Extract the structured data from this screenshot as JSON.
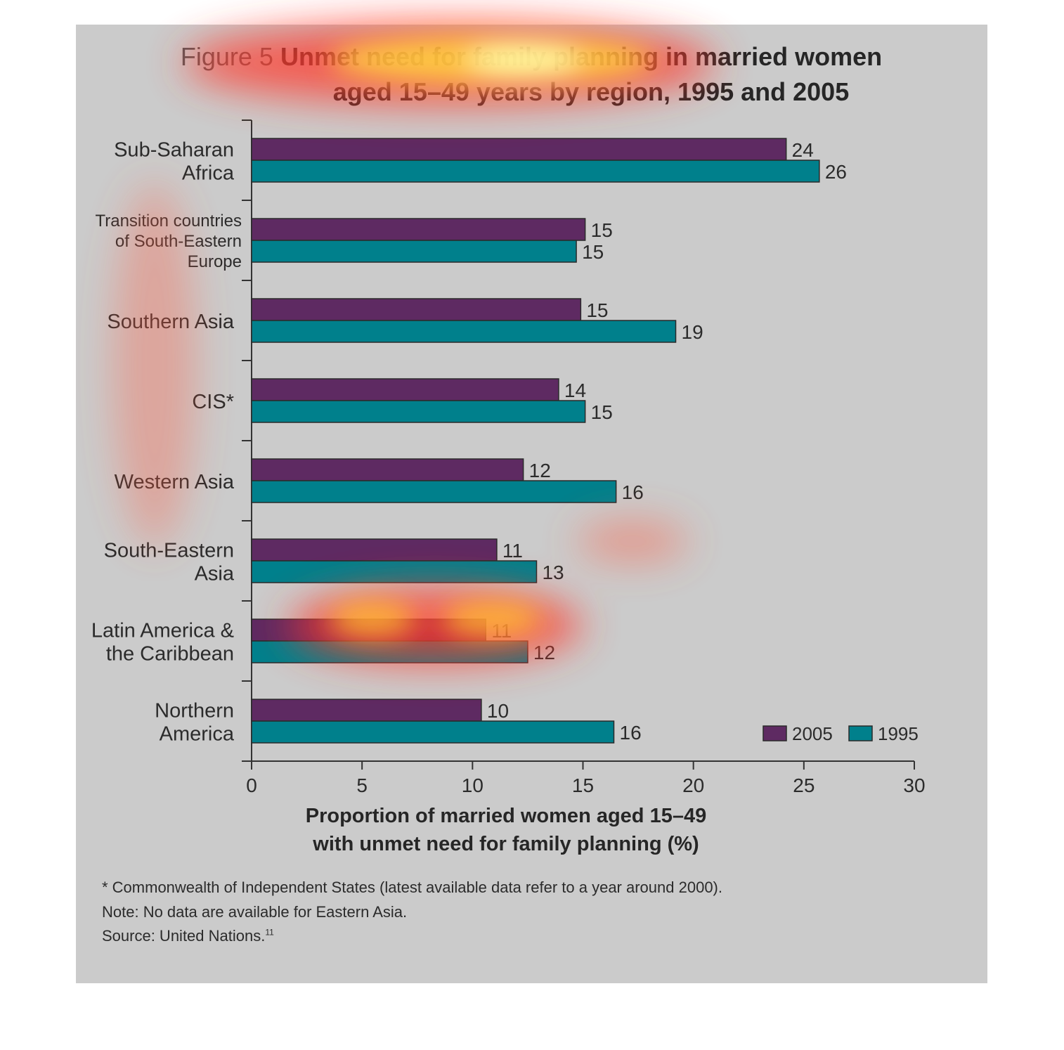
{
  "chart_data": {
    "type": "bar",
    "orientation": "horizontal",
    "title_prefix": "Figure 5",
    "title": "Unmet need for family planning in married women aged 15–49 years by region, 1995 and 2005",
    "title_lines": [
      "Unmet need for family planning in married women",
      "aged 15–49 years by region, 1995 and 2005"
    ],
    "categories": [
      [
        "Sub-Saharan",
        "Africa"
      ],
      [
        "Transition countries",
        "of South-Eastern",
        "Europe"
      ],
      [
        "Southern Asia"
      ],
      [
        "CIS*"
      ],
      [
        "Western Asia"
      ],
      [
        "South-Eastern",
        "Asia"
      ],
      [
        "Latin America &",
        "the Caribbean"
      ],
      [
        "Northern",
        "America"
      ]
    ],
    "series": [
      {
        "name": "2005",
        "color": "#5e2a62",
        "values": [
          24.2,
          15.1,
          14.9,
          13.9,
          12.3,
          11.1,
          10.6,
          10.4
        ],
        "labels": [
          "24",
          "15",
          "15",
          "14",
          "12",
          "11",
          "11",
          "10"
        ]
      },
      {
        "name": "1995",
        "color": "#00808c",
        "values": [
          25.7,
          14.7,
          19.2,
          15.1,
          16.5,
          12.9,
          12.5,
          16.4
        ],
        "labels": [
          "26",
          "15",
          "19",
          "15",
          "16",
          "13",
          "12",
          "16"
        ]
      }
    ],
    "xlim": [
      0,
      30
    ],
    "xticks": [
      "0",
      "5",
      "10",
      "15",
      "20",
      "25",
      "30"
    ],
    "xlabel_lines": [
      "Proportion of married women aged 15–49",
      "with unmet need for family planning (%)"
    ],
    "legend_position": "bottom-right",
    "grid": false,
    "attention_heatmap_overlay": true
  },
  "notes": {
    "cis": "* Commonwealth of Independent States (latest available data refer to a year around 2000).",
    "eastern_asia": "Note: No data are available for Eastern Asia.",
    "source": "Source: United Nations.",
    "source_ref": "11"
  },
  "colors": {
    "panel": "#cbcbcb",
    "bar_2005": "#5e2a62",
    "bar_1995": "#00808c",
    "text": "#2b2b2b"
  }
}
